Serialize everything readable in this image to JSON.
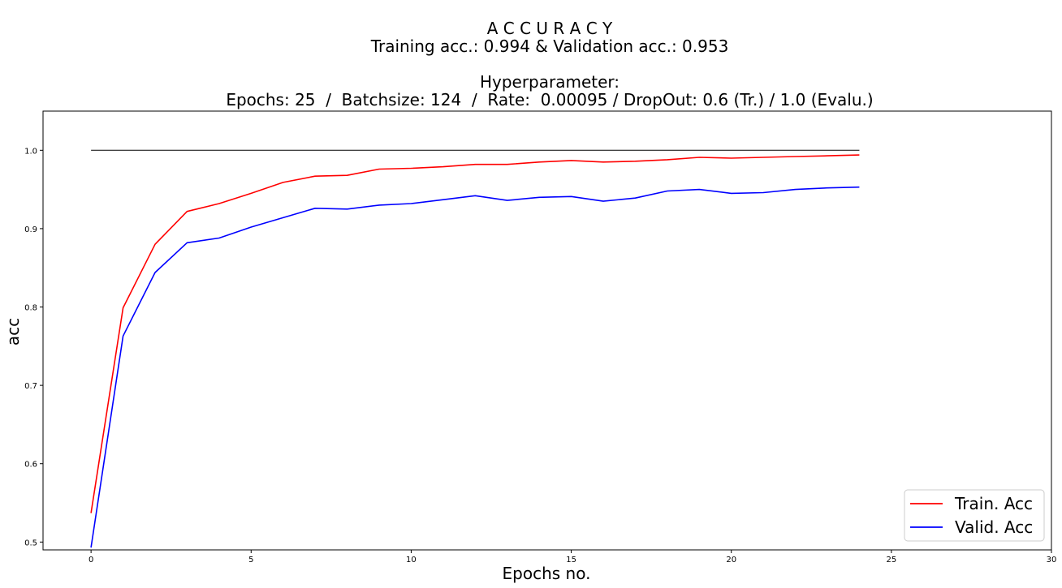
{
  "chart_data": {
    "type": "line",
    "title_lines": [
      "A C C U R A C Y",
      "Training acc.: 0.994 & Validation acc.: 0.953",
      "",
      "Hyperparameter:",
      "Epochs: 25  /  Batchsize: 124  /  Rate:  0.00095 / DropOut: 0.6 (Tr.) / 1.0 (Evalu.)"
    ],
    "xlabel": "Epochs no.",
    "ylabel": "acc",
    "xlim": [
      -1.5,
      30
    ],
    "ylim": [
      0.49,
      1.05
    ],
    "xticks": [
      0,
      5,
      10,
      15,
      20,
      25,
      30
    ],
    "yticks": [
      0.5,
      0.6,
      0.7,
      0.8,
      0.9,
      1.0
    ],
    "ytick_labels": [
      "0.5",
      "0.6",
      "0.7",
      "0.8",
      "0.9",
      "1.0"
    ],
    "grid": false,
    "legend_position": "bottom-right",
    "reference_line": {
      "y": 1.0,
      "x": [
        0,
        24
      ],
      "color": "#000000"
    },
    "series": [
      {
        "name": "Train. Acc",
        "color": "#ff0000",
        "x": [
          0,
          1,
          2,
          3,
          4,
          5,
          6,
          7,
          8,
          9,
          10,
          11,
          12,
          13,
          14,
          15,
          16,
          17,
          18,
          19,
          20,
          21,
          22,
          23,
          24
        ],
        "values": [
          0.537,
          0.799,
          0.88,
          0.922,
          0.932,
          0.945,
          0.959,
          0.967,
          0.968,
          0.976,
          0.977,
          0.979,
          0.982,
          0.982,
          0.985,
          0.987,
          0.985,
          0.986,
          0.988,
          0.991,
          0.99,
          0.991,
          0.992,
          0.993,
          0.994
        ]
      },
      {
        "name": "Valid. Acc",
        "color": "#0000ff",
        "x": [
          0,
          1,
          2,
          3,
          4,
          5,
          6,
          7,
          8,
          9,
          10,
          11,
          12,
          13,
          14,
          15,
          16,
          17,
          18,
          19,
          20,
          21,
          22,
          23,
          24
        ],
        "values": [
          0.493,
          0.763,
          0.844,
          0.882,
          0.888,
          0.902,
          0.914,
          0.926,
          0.925,
          0.93,
          0.932,
          0.937,
          0.942,
          0.936,
          0.94,
          0.941,
          0.935,
          0.939,
          0.948,
          0.95,
          0.945,
          0.946,
          0.95,
          0.952,
          0.953
        ]
      }
    ]
  }
}
